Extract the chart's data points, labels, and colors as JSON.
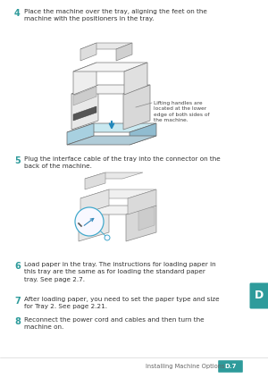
{
  "bg_color": "#ffffff",
  "teal_color": "#2e9b9b",
  "text_color": "#333333",
  "step4_num": "4",
  "step4_text": "Place the machine over the tray, aligning the feet on the\nmachine with the positioners in the tray.",
  "step5_num": "5",
  "step5_text": "Plug the interface cable of the tray into the connector on the\nback of the machine.",
  "step6_num": "6",
  "step6_text": "Load paper in the tray. The instructions for loading paper in\nthis tray are the same as for loading the standard paper\ntray. See page 2.7.",
  "step7_num": "7",
  "step7_text": "After loading paper, you need to set the paper type and size\nfor Tray 2. See page 2.21.",
  "step8_num": "8",
  "step8_text": "Reconnect the power cord and cables and then turn the\nmachine on.",
  "note_text": "Lifting handles are\nlocated at the lower\nedge of both sides of\nthe machine.",
  "footer_text": "Installing Machine Options",
  "footer_label": "D.7",
  "section_letter": "D",
  "body_fs": 5.2,
  "num_fs": 7.0,
  "note_fs": 4.2,
  "footer_fs": 4.8
}
